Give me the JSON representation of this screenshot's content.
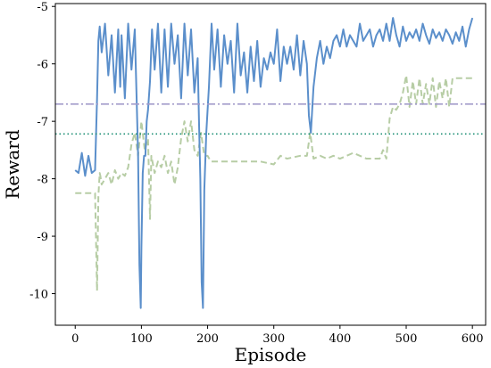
{
  "chart_data": {
    "type": "line",
    "title": "",
    "xlabel": "Episode",
    "ylabel": "Reward",
    "xlim": [
      -30,
      620
    ],
    "ylim": [
      -10.55,
      -4.95
    ],
    "xticks": [
      0,
      100,
      200,
      300,
      400,
      500,
      600
    ],
    "yticks": [
      -5,
      -6,
      -7,
      -8,
      -9,
      -10
    ],
    "grid": false,
    "legend": "none",
    "colors": {
      "main": "#5b8fcb",
      "secondary": "#b7cda5",
      "hline_upper": "#a39ccb",
      "hline_lower": "#1d8f74"
    },
    "hlines": [
      {
        "y": -6.7,
        "style": "dashdot",
        "color": "#a39ccb"
      },
      {
        "y": -7.22,
        "style": "dotted",
        "color": "#1d8f74"
      }
    ],
    "series": [
      {
        "style": "solid",
        "color": "#5b8fcb",
        "x": [
          0,
          5,
          10,
          15,
          20,
          25,
          30,
          33,
          35,
          37,
          40,
          45,
          50,
          55,
          60,
          65,
          68,
          70,
          75,
          80,
          85,
          90,
          93,
          95,
          97,
          99,
          100,
          102,
          104,
          106,
          108,
          110,
          113,
          116,
          120,
          125,
          130,
          135,
          140,
          145,
          150,
          155,
          160,
          165,
          170,
          175,
          180,
          185,
          187,
          189,
          191,
          193,
          195,
          198,
          202,
          206,
          210,
          215,
          220,
          225,
          230,
          235,
          240,
          245,
          250,
          255,
          260,
          265,
          270,
          275,
          280,
          285,
          290,
          295,
          300,
          305,
          310,
          315,
          320,
          325,
          330,
          335,
          340,
          345,
          350,
          353,
          356,
          360,
          365,
          370,
          375,
          380,
          385,
          390,
          395,
          400,
          405,
          410,
          415,
          420,
          425,
          430,
          435,
          440,
          445,
          450,
          455,
          460,
          465,
          470,
          475,
          480,
          485,
          490,
          495,
          500,
          505,
          510,
          515,
          520,
          525,
          530,
          535,
          540,
          545,
          550,
          555,
          560,
          565,
          570,
          575,
          580,
          585,
          590,
          595,
          600
        ],
        "y": [
          -7.85,
          -7.9,
          -7.55,
          -7.95,
          -7.6,
          -7.9,
          -7.85,
          -6.6,
          -5.6,
          -5.35,
          -5.8,
          -5.3,
          -6.2,
          -5.5,
          -6.5,
          -5.4,
          -6.4,
          -5.5,
          -6.6,
          -5.3,
          -6.1,
          -5.4,
          -6.7,
          -7.6,
          -9.5,
          -10.25,
          -9.2,
          -7.9,
          -7.6,
          -7.6,
          -7.0,
          -6.8,
          -6.3,
          -5.4,
          -6.1,
          -5.3,
          -6.5,
          -5.4,
          -6.4,
          -5.3,
          -6.0,
          -5.5,
          -6.6,
          -5.3,
          -6.2,
          -5.4,
          -6.5,
          -5.9,
          -7.0,
          -8.0,
          -9.8,
          -10.25,
          -8.2,
          -7.2,
          -6.4,
          -5.3,
          -6.1,
          -5.4,
          -6.4,
          -5.5,
          -6.0,
          -5.6,
          -6.5,
          -5.3,
          -6.2,
          -5.8,
          -6.5,
          -5.7,
          -6.3,
          -5.6,
          -6.4,
          -5.9,
          -6.1,
          -5.8,
          -6.0,
          -5.4,
          -6.3,
          -5.7,
          -6.0,
          -5.7,
          -6.1,
          -5.5,
          -6.2,
          -5.6,
          -6.0,
          -6.9,
          -7.2,
          -6.4,
          -5.9,
          -5.6,
          -6.0,
          -5.7,
          -5.9,
          -5.6,
          -5.5,
          -5.7,
          -5.4,
          -5.7,
          -5.5,
          -5.6,
          -5.7,
          -5.3,
          -5.6,
          -5.5,
          -5.4,
          -5.7,
          -5.5,
          -5.4,
          -5.6,
          -5.3,
          -5.6,
          -5.2,
          -5.5,
          -5.7,
          -5.35,
          -5.6,
          -5.45,
          -5.55,
          -5.4,
          -5.6,
          -5.3,
          -5.5,
          -5.65,
          -5.4,
          -5.55,
          -5.45,
          -5.6,
          -5.4,
          -5.5,
          -5.65,
          -5.45,
          -5.6,
          -5.35,
          -5.7,
          -5.4,
          -5.2
        ]
      },
      {
        "style": "dashed",
        "color": "#b7cda5",
        "x": [
          0,
          30,
          33,
          35,
          37,
          38,
          40,
          45,
          50,
          55,
          60,
          65,
          70,
          75,
          80,
          85,
          90,
          95,
          100,
          105,
          110,
          113,
          115,
          120,
          125,
          130,
          135,
          140,
          145,
          150,
          155,
          160,
          165,
          170,
          175,
          180,
          185,
          190,
          195,
          200,
          205,
          210,
          215,
          220,
          240,
          260,
          280,
          300,
          310,
          320,
          340,
          350,
          355,
          360,
          370,
          380,
          390,
          400,
          420,
          440,
          460,
          465,
          470,
          475,
          480,
          485,
          490,
          495,
          500,
          505,
          510,
          515,
          520,
          525,
          530,
          535,
          540,
          545,
          550,
          555,
          560,
          565,
          570,
          575,
          580,
          600
        ],
        "y": [
          -8.25,
          -8.25,
          -9.95,
          -8.3,
          -7.9,
          -7.95,
          -8.1,
          -8.0,
          -7.9,
          -8.1,
          -7.85,
          -8.0,
          -7.9,
          -7.95,
          -7.8,
          -7.4,
          -7.2,
          -7.6,
          -7.0,
          -7.5,
          -7.3,
          -8.7,
          -7.6,
          -7.9,
          -7.7,
          -7.8,
          -7.6,
          -7.9,
          -7.7,
          -8.1,
          -7.8,
          -7.3,
          -7.0,
          -7.35,
          -7.0,
          -7.5,
          -7.6,
          -7.2,
          -7.6,
          -7.6,
          -7.7,
          -7.7,
          -7.7,
          -7.7,
          -7.7,
          -7.7,
          -7.7,
          -7.75,
          -7.6,
          -7.65,
          -7.6,
          -7.6,
          -7.2,
          -7.65,
          -7.6,
          -7.65,
          -7.6,
          -7.65,
          -7.55,
          -7.65,
          -7.65,
          -7.5,
          -7.65,
          -6.95,
          -6.75,
          -6.8,
          -6.7,
          -6.5,
          -6.2,
          -6.75,
          -6.3,
          -6.7,
          -6.25,
          -6.7,
          -6.35,
          -6.7,
          -6.25,
          -6.75,
          -6.3,
          -6.6,
          -6.25,
          -6.75,
          -6.25,
          -6.25,
          -6.25,
          -6.25
        ]
      }
    ]
  }
}
